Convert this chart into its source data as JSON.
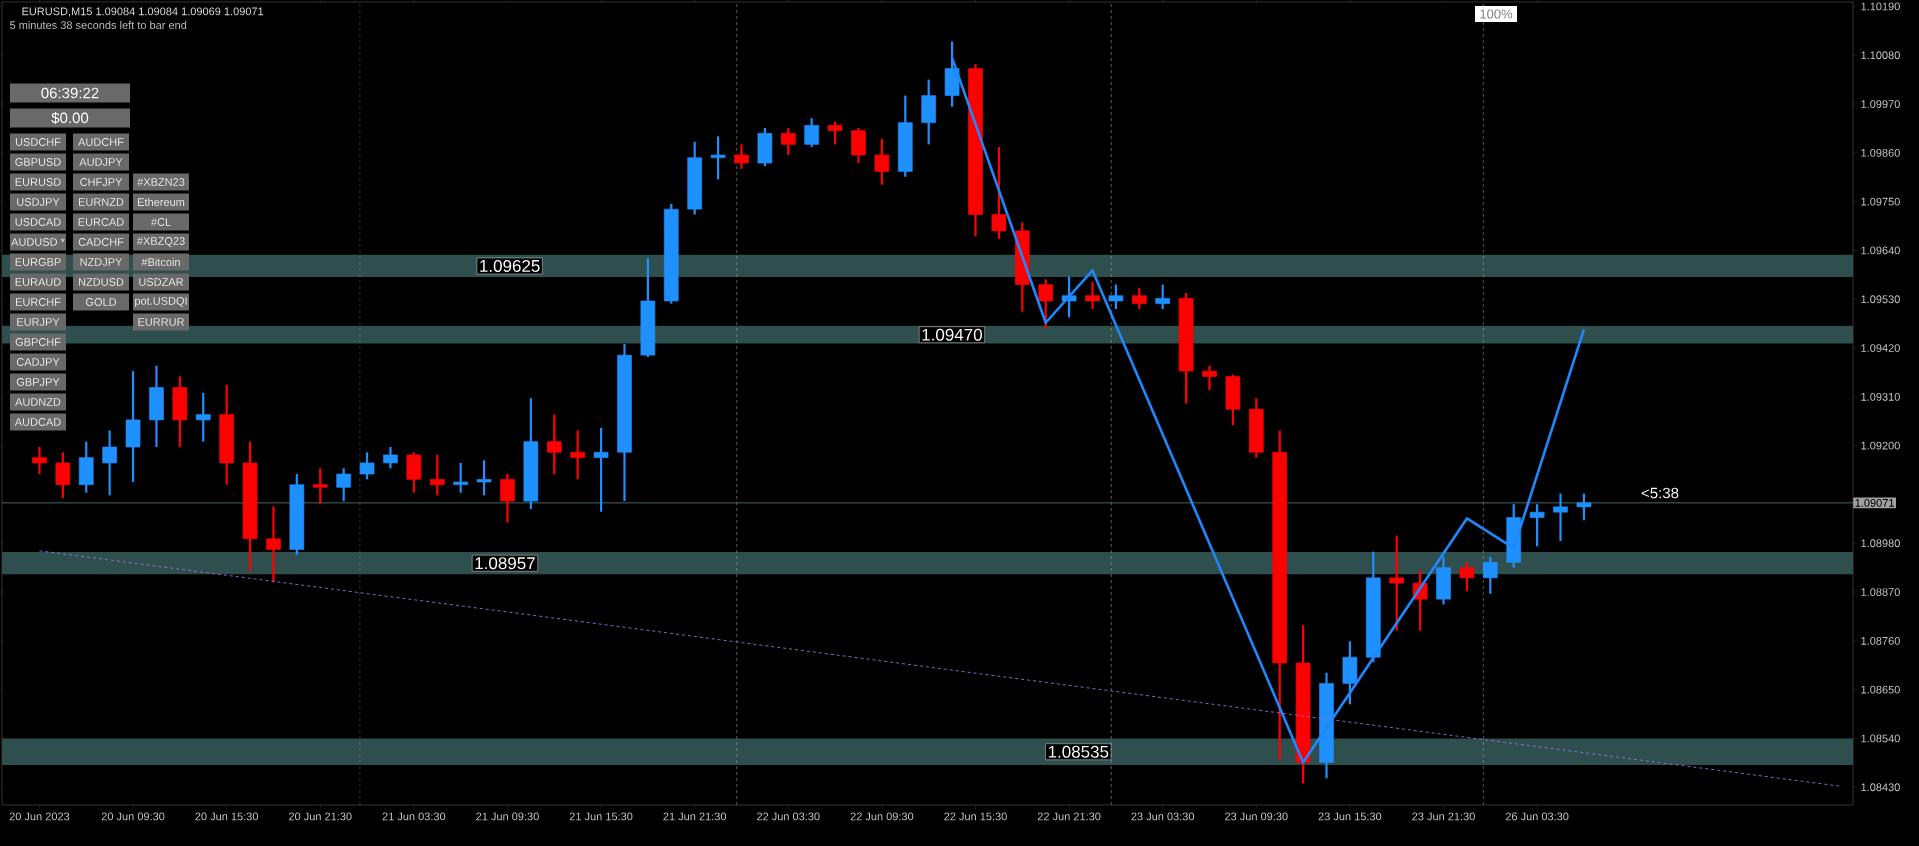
{
  "chart_data": {
    "type": "candlestick",
    "title": "EURUSD,M15  1.09084 1.09084 1.09069 1.09071",
    "subtitle": "5 minutes 38 seconds left to bar end",
    "categories": [
      "20 Jun 2023",
      null,
      null,
      null,
      "20 Jun 09:30",
      null,
      null,
      null,
      "20 Jun 15:30",
      null,
      null,
      null,
      "20 Jun 21:30",
      null,
      null,
      null,
      "21 Jun 03:30",
      null,
      null,
      null,
      "21 Jun 09:30",
      null,
      null,
      null,
      "21 Jun 15:30",
      null,
      null,
      null,
      "21 Jun 21:30",
      null,
      null,
      null,
      "22 Jun 03:30",
      null,
      null,
      null,
      "22 Jun 09:30",
      null,
      null,
      null,
      "22 Jun 15:30",
      null,
      null,
      null,
      "22 Jun 21:30",
      null,
      null,
      null,
      "23 Jun 03:30",
      null,
      null,
      null,
      "23 Jun 09:30",
      null,
      null,
      null,
      "23 Jun 15:30",
      null,
      null,
      null,
      "23 Jun 21:30",
      null,
      null,
      null,
      "26 Jun 03:30",
      null,
      null,
      null,
      null,
      null,
      null,
      null,
      null,
      null,
      null,
      null,
      null,
      null
    ],
    "ohlc": [
      [
        1.09173,
        1.09197,
        1.09136,
        1.09161
      ],
      [
        1.09161,
        1.09185,
        1.09082,
        1.09112
      ],
      [
        1.09112,
        1.09209,
        1.09094,
        1.09173
      ],
      [
        1.09161,
        1.09234,
        1.09088,
        1.09197
      ],
      [
        1.09197,
        1.09368,
        1.09118,
        1.09258
      ],
      [
        1.09258,
        1.0938,
        1.09197,
        1.09331
      ],
      [
        1.09331,
        1.09356,
        1.09197,
        1.09258
      ],
      [
        1.09258,
        1.09319,
        1.09209,
        1.0927
      ],
      [
        1.0927,
        1.09337,
        1.09112,
        1.09161
      ],
      [
        1.09161,
        1.09209,
        1.08917,
        1.0899
      ],
      [
        1.0899,
        1.09063,
        1.08893,
        1.08966
      ],
      [
        1.08966,
        1.09136,
        1.08954,
        1.09112
      ],
      [
        1.09112,
        1.09149,
        1.09069,
        1.09106
      ],
      [
        1.09106,
        1.09149,
        1.09075,
        1.09136
      ],
      [
        1.09136,
        1.09185,
        1.09124,
        1.09161
      ],
      [
        1.09161,
        1.09197,
        1.09149,
        1.09179
      ],
      [
        1.09179,
        1.09185,
        1.09094,
        1.09124
      ],
      [
        1.09124,
        1.09179,
        1.09088,
        1.09112
      ],
      [
        1.09112,
        1.09161,
        1.09094,
        1.09118
      ],
      [
        1.09118,
        1.09167,
        1.09088,
        1.09124
      ],
      [
        1.09124,
        1.09136,
        1.09027,
        1.09075
      ],
      [
        1.09075,
        1.09307,
        1.09057,
        1.09209
      ],
      [
        1.09209,
        1.0927,
        1.09136,
        1.09185
      ],
      [
        1.09185,
        1.09234,
        1.09124,
        1.09173
      ],
      [
        1.09173,
        1.0924,
        1.09051,
        1.09185
      ],
      [
        1.09185,
        1.09429,
        1.09075,
        1.09404
      ],
      [
        1.09404,
        1.09623,
        1.094,
        1.09526
      ],
      [
        1.09526,
        1.09745,
        1.0952,
        1.09733
      ],
      [
        1.09733,
        1.09885,
        1.09721,
        1.09849
      ],
      [
        1.09849,
        1.09897,
        1.098,
        1.09855
      ],
      [
        1.09855,
        1.09879,
        1.09824,
        1.09837
      ],
      [
        1.09837,
        1.09916,
        1.0983,
        1.09904
      ],
      [
        1.09904,
        1.09916,
        1.09855,
        1.09879
      ],
      [
        1.09879,
        1.09938,
        1.09873,
        1.09922
      ],
      [
        1.09922,
        1.0993,
        1.09879,
        1.0991
      ],
      [
        1.0991,
        1.09916,
        1.09837,
        1.09855
      ],
      [
        1.09855,
        1.09891,
        1.09788,
        1.09818
      ],
      [
        1.09818,
        1.09989,
        1.09806,
        1.09928
      ],
      [
        1.09928,
        1.10025,
        1.09879,
        1.09989
      ],
      [
        1.09989,
        1.10111,
        1.09964,
        1.1005
      ],
      [
        1.1005,
        1.1006,
        1.09672,
        1.09721
      ],
      [
        1.09721,
        1.09873,
        1.09666,
        1.09684
      ],
      [
        1.09684,
        1.09703,
        1.09502,
        1.09563
      ],
      [
        1.09563,
        1.09575,
        1.09465,
        1.09526
      ],
      [
        1.09526,
        1.09581,
        1.09489,
        1.09538
      ],
      [
        1.09538,
        1.09569,
        1.09508,
        1.09526
      ],
      [
        1.09526,
        1.09563,
        1.09508,
        1.09538
      ],
      [
        1.09538,
        1.09556,
        1.09508,
        1.0952
      ],
      [
        1.0952,
        1.09563,
        1.09508,
        1.09532
      ],
      [
        1.09532,
        1.09544,
        1.09295,
        1.09368
      ],
      [
        1.09368,
        1.0938,
        1.09325,
        1.09356
      ],
      [
        1.09356,
        1.0936,
        1.09246,
        1.09282
      ],
      [
        1.09282,
        1.09307,
        1.09173,
        1.09185
      ],
      [
        1.09185,
        1.09234,
        1.08491,
        1.0871
      ],
      [
        1.0871,
        1.08795,
        1.08439,
        1.08486
      ],
      [
        1.08486,
        1.08688,
        1.0845,
        1.08664
      ],
      [
        1.08664,
        1.08759,
        1.08617,
        1.08723
      ],
      [
        1.08723,
        1.08961,
        1.08712,
        1.08902
      ],
      [
        1.08902,
        1.08997,
        1.08783,
        1.0889
      ],
      [
        1.0889,
        1.08919,
        1.08783,
        1.08854
      ],
      [
        1.08854,
        1.08949,
        1.08842,
        1.08925
      ],
      [
        1.08925,
        1.08937,
        1.08872,
        1.08902
      ],
      [
        1.08902,
        1.08949,
        1.08866,
        1.08937
      ],
      [
        1.08937,
        1.09068,
        1.08925,
        1.09038
      ],
      [
        1.09038,
        1.09068,
        1.08973,
        1.0905
      ],
      [
        1.0905,
        1.09092,
        1.08985,
        1.09062
      ],
      [
        1.09062,
        1.09092,
        1.09032,
        1.09071
      ],
      null,
      null,
      null,
      null,
      null,
      null,
      null,
      null,
      null,
      null,
      null
    ],
    "colors": [
      "#ff0000",
      "#ff0000",
      "#1e90ff",
      "#1e90ff",
      "#1e90ff",
      "#1e90ff",
      "#ff0000",
      "#1e90ff",
      "#ff0000",
      "#ff0000",
      "#ff0000",
      "#1e90ff",
      "#ff0000",
      "#1e90ff",
      "#1e90ff",
      "#1e90ff",
      "#ff0000",
      "#ff0000",
      "#1e90ff",
      "#1e90ff",
      "#ff0000",
      "#1e90ff",
      "#ff0000",
      "#ff0000",
      "#1e90ff",
      "#1e90ff",
      "#1e90ff",
      "#1e90ff",
      "#1e90ff",
      "#1e90ff",
      "#ff0000",
      "#1e90ff",
      "#ff0000",
      "#1e90ff",
      "#ff0000",
      "#ff0000",
      "#ff0000",
      "#1e90ff",
      "#1e90ff",
      "#1e90ff",
      "#ff0000",
      "#ff0000",
      "#ff0000",
      "#ff0000",
      "#1e90ff",
      "#ff0000",
      "#1e90ff",
      "#ff0000",
      "#1e90ff",
      "#ff0000",
      "#ff0000",
      "#ff0000",
      "#ff0000",
      "#ff0000",
      "#ff0000",
      "#1e90ff",
      "#1e90ff",
      "#1e90ff",
      "#ff0000",
      "#ff0000",
      "#1e90ff",
      "#ff0000",
      "#1e90ff",
      "#1e90ff",
      "#1e90ff",
      "#1e90ff",
      "#1e90ff",
      null,
      null,
      null,
      null,
      null,
      null,
      null,
      null,
      null,
      null,
      null
    ],
    "ylim": [
      1.0839,
      1.102
    ],
    "yticks": [
      {
        "value": 1.0843,
        "label": "1.08430"
      },
      {
        "value": 1.0854,
        "label": "1.08540"
      },
      {
        "value": 1.0865,
        "label": "1.08650"
      },
      {
        "value": 1.0876,
        "label": "1.08760"
      },
      {
        "value": 1.0887,
        "label": "1.08870"
      },
      {
        "value": 1.0898,
        "label": "1.08980"
      },
      {
        "value": 1.092,
        "label": "1.09200"
      },
      {
        "value": 1.0931,
        "label": "1.09310"
      },
      {
        "value": 1.0942,
        "label": "1.09420"
      },
      {
        "value": 1.0953,
        "label": "1.09530"
      },
      {
        "value": 1.0964,
        "label": "1.09640"
      },
      {
        "value": 1.0975,
        "label": "1.09750"
      },
      {
        "value": 1.0986,
        "label": "1.09860"
      },
      {
        "value": 1.0997,
        "label": "1.09970"
      },
      {
        "value": 1.1008,
        "label": "1.10080"
      },
      {
        "value": 1.1019,
        "label": "1.10190"
      }
    ],
    "series": [
      {
        "type": "line",
        "color": "#1e88ff",
        "line_style": "solid",
        "values": [
          null,
          null,
          null,
          null,
          null,
          null,
          null,
          null,
          null,
          null,
          null,
          null,
          null,
          null,
          null,
          null,
          null,
          null,
          null,
          null,
          null,
          null,
          null,
          null,
          null,
          null,
          null,
          null,
          null,
          null,
          null,
          null,
          null,
          null,
          null,
          null,
          null,
          null,
          null,
          1.10074,
          null,
          null,
          null,
          1.09477,
          null,
          1.09595,
          null,
          null,
          null,
          null,
          null,
          null,
          null,
          null,
          1.08486,
          null,
          null,
          null,
          null,
          null,
          null,
          1.09036,
          null,
          1.08969,
          null,
          null,
          1.09462,
          null,
          null,
          null,
          null,
          null,
          null,
          null,
          null,
          null,
          null,
          null
        ]
      },
      {
        "type": "line",
        "color": "#9370db",
        "line_style": "dashed",
        "values": [
          1.08963,
          null,
          null,
          null,
          null,
          null,
          null,
          null,
          null,
          null,
          null,
          null,
          null,
          null,
          null,
          null,
          null,
          null,
          null,
          null,
          null,
          null,
          null,
          null,
          null,
          null,
          null,
          null,
          null,
          null,
          null,
          null,
          null,
          null,
          null,
          null,
          null,
          null,
          null,
          null,
          null,
          null,
          null,
          null,
          null,
          null,
          null,
          null,
          null,
          null,
          null,
          null,
          null,
          null,
          null,
          null,
          null,
          null,
          null,
          null,
          null,
          null,
          null,
          null,
          null,
          null,
          null,
          null,
          null,
          null,
          null,
          null,
          null,
          null,
          null,
          null,
          null,
          1.08432
        ]
      }
    ],
    "ref_lines": [
      {
        "axis": "y",
        "value": 1.09071,
        "label": "1.09071",
        "color": "#5f7f7f"
      }
    ],
    "bands": [
      {
        "axis": "y",
        "from": 1.0958,
        "to": 1.0963,
        "label": "1.09625",
        "color": "#2f4f4f"
      },
      {
        "axis": "y",
        "from": 1.0943,
        "to": 1.0947,
        "label": "1.09470",
        "color": "#2f4f4f"
      },
      {
        "axis": "y",
        "from": 1.0891,
        "to": 1.0896,
        "label": "1.08957",
        "color": "#2f4f4f"
      },
      {
        "axis": "y",
        "from": 1.0848,
        "to": 1.0854,
        "label": "1.08535",
        "color": "#2f4f4f"
      }
    ],
    "annotations": [
      "100%",
      "<5:38",
      "06:39:22",
      "$0.00",
      "USDCHF",
      "AUDCHF",
      "GBPUSD",
      "AUDJPY",
      "EURUSD",
      "CHFJPY",
      "#XBZN23",
      "USDJPY",
      "EURNZD",
      "Ethereum",
      "USDCAD",
      "EURCAD",
      "#CL",
      "AUDUSD *",
      "CADCHF",
      "#XBZQ23",
      "EURGBP",
      "NZDJPY",
      "#Bitcoin",
      "EURAUD",
      "NZDUSD",
      "USDZAR",
      "EURCHF",
      "GOLD",
      "pot.USDQI",
      "EURJPY",
      "EURRUR",
      "GBPCHF",
      "CADJPY",
      "GBPJPY",
      "AUDNZD",
      "AUDCAD"
    ]
  }
}
